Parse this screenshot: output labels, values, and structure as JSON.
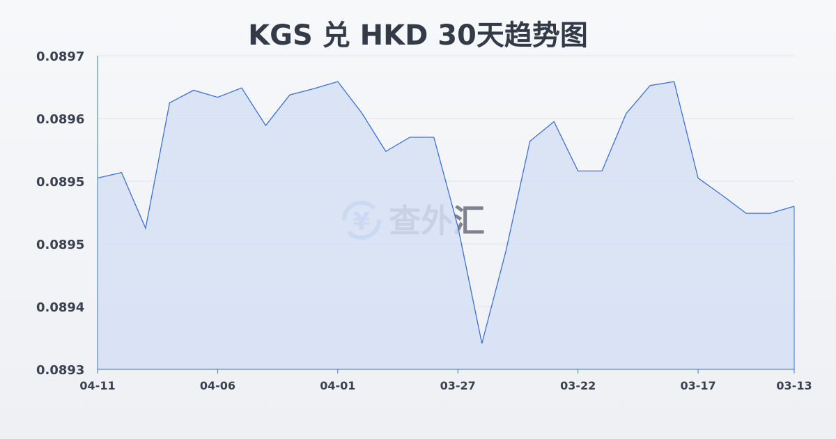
{
  "chart_data": {
    "type": "area",
    "title": "KGS 兑 HKD 30天趋势图",
    "xlabel": "",
    "ylabel": "",
    "ylim": [
      0.0893,
      0.0897
    ],
    "grid": true,
    "y_ticks": [
      {
        "value": 0.0893,
        "label": "0.0893"
      },
      {
        "value": 0.08938,
        "label": "0.0894"
      },
      {
        "value": 0.08946,
        "label": "0.0895"
      },
      {
        "value": 0.08954,
        "label": "0.0895"
      },
      {
        "value": 0.08962,
        "label": "0.0896"
      },
      {
        "value": 0.0897,
        "label": "0.0897"
      }
    ],
    "x_tick_labels": [
      "04-11",
      "04-06",
      "04-01",
      "03-27",
      "03-22",
      "03-17",
      "03-13"
    ],
    "x": [
      "04-11",
      "04-10",
      "04-09",
      "04-08",
      "04-07",
      "04-06",
      "04-05",
      "04-04",
      "04-03",
      "04-02",
      "04-01",
      "03-31",
      "03-30",
      "03-29",
      "03-28",
      "03-27",
      "03-26",
      "03-25",
      "03-24",
      "03-23",
      "03-22",
      "03-21",
      "03-20",
      "03-19",
      "03-18",
      "03-17",
      "03-16",
      "03-15",
      "03-14",
      "03-13"
    ],
    "values": [
      0.089544,
      0.089551,
      0.08948,
      0.08964,
      0.089656,
      0.089647,
      0.089659,
      0.089611,
      0.08965,
      0.089658,
      0.089667,
      0.089627,
      0.089578,
      0.089596,
      0.089596,
      0.089482,
      0.089333,
      0.089451,
      0.089591,
      0.089616,
      0.089553,
      0.089553,
      0.089626,
      0.089662,
      0.089667,
      0.089544,
      0.089522,
      0.089499,
      0.089499,
      0.089508
    ],
    "colors": {
      "line": "#3a6fd8",
      "fill": "#d6e0f5"
    }
  },
  "watermark": {
    "text": "查外汇",
    "icon": "yen-exchange-icon",
    "icon_glyph": "¥"
  }
}
